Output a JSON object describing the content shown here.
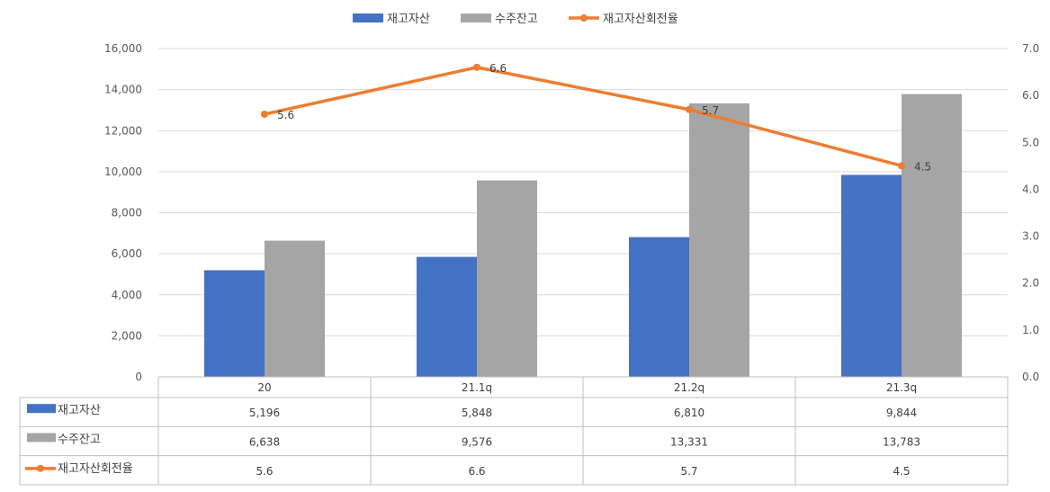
{
  "chart_data": {
    "type": "bar",
    "categories": [
      "20",
      "21.1q",
      "21.2q",
      "21.3q"
    ],
    "series": [
      {
        "name": "재고자산",
        "type": "bar",
        "axis": "left",
        "color": "#4472C4",
        "values": [
          5196,
          5848,
          6810,
          9844
        ],
        "table_values": [
          "5,196",
          "5,848",
          "6,810",
          "9,844"
        ]
      },
      {
        "name": "수주잔고",
        "type": "bar",
        "axis": "left",
        "color": "#A5A5A5",
        "values": [
          6638,
          9576,
          13331,
          13783
        ],
        "table_values": [
          "6,638",
          "9,576",
          "13,331",
          "13,783"
        ]
      },
      {
        "name": "재고자산회전율",
        "type": "line",
        "axis": "right",
        "color": "#ED7D31",
        "values": [
          5.6,
          6.6,
          5.7,
          4.5
        ],
        "table_values": [
          "5.6",
          "6.6",
          "5.7",
          "4.5"
        ],
        "data_labels": [
          "5.6",
          "6.6",
          "5.7",
          "4.5"
        ]
      }
    ],
    "y_left": {
      "range": [
        0,
        16000
      ],
      "ticks": [
        0,
        2000,
        4000,
        6000,
        8000,
        10000,
        12000,
        14000,
        16000
      ],
      "tick_labels": [
        "0",
        "2,000",
        "4,000",
        "6,000",
        "8,000",
        "10,000",
        "12,000",
        "14,000",
        "16,000"
      ]
    },
    "y_right": {
      "range": [
        0,
        7
      ],
      "ticks": [
        0,
        1,
        2,
        3,
        4,
        5,
        6,
        7
      ],
      "tick_labels": [
        "0.0",
        "1.0",
        "2.0",
        "3.0",
        "4.0",
        "5.0",
        "6.0",
        "7.0"
      ]
    },
    "grid": true,
    "legend_position": "top",
    "data_table": true
  }
}
